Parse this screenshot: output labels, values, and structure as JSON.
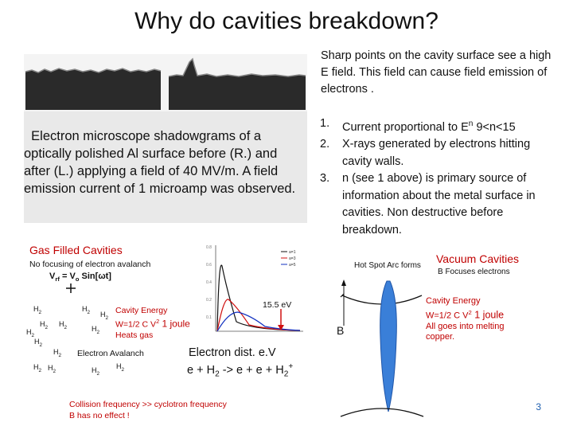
{
  "title": "Why do cavities breakdown?",
  "intro": "Sharp points on the cavity surface see a high E field. This field can cause field emission of electrons .",
  "list": [
    {
      "num": "1.",
      "text_a": "Current proportional to E",
      "sup": "n",
      "text_b": " 9<n<15"
    },
    {
      "num": "2.",
      "text_a": "X-rays generated by electrons hitting cavity walls.",
      "sup": "",
      "text_b": ""
    },
    {
      "num": "3.",
      "text_a": "n (see 1 above) is primary source of information about the metal surface in cavities. Non destructive before breakdown.",
      "sup": "",
      "text_b": ""
    }
  ],
  "caption": "Electron microscope shadowgrams of a optically polished Al surface before (R.) and after (L.) applying a field of 40 MV/m. A field emission current of 1 microamp was observed.",
  "gas": {
    "title": "Gas Filled Cavities",
    "no_focus": "No focusing of electron avalanch",
    "vrf_a": "V",
    "vrf_sub": "rf",
    "vrf_b": " = V",
    "vrf_sub2": "o",
    "vrf_c": " Sin[ωt]",
    "energy1": "Cavity Energy",
    "energy2": "W=1/2 C V",
    "energy2_sup": "2",
    "energy2_b": " 1 joule",
    "energy3": "Heats gas",
    "avalanch": "Electron Avalanch",
    "h2": "H",
    "h2_sub": "2",
    "ev": "15.5 eV",
    "dist": "Electron dist. e.V",
    "reaction_a": "e + H",
    "reaction_sub1": "2",
    "reaction_b": " -> e + e + H",
    "reaction_sub2": "2",
    "reaction_sup": "+",
    "collision1": "Collision frequency >> cyclotron frequency",
    "collision2": "B has no effect !",
    "legend": [
      "a=1",
      "a=3",
      "a=5"
    ]
  },
  "vacuum": {
    "hot_spot": "Hot Spot Arc forms",
    "title": "Vacuum Cavities",
    "focus": "B Focuses electrons",
    "energy1": "Cavity Energy",
    "energy2": "W=1/2 C V",
    "energy2_sup": "2",
    "energy2_b": " 1 joule",
    "energy3": "All goes into melting",
    "energy4": "copper.",
    "b_label": "B"
  },
  "page_number": "3",
  "colors": {
    "red": "#c00000",
    "blue_arc": "#3a7fd8",
    "page_num": "#2060b0"
  }
}
